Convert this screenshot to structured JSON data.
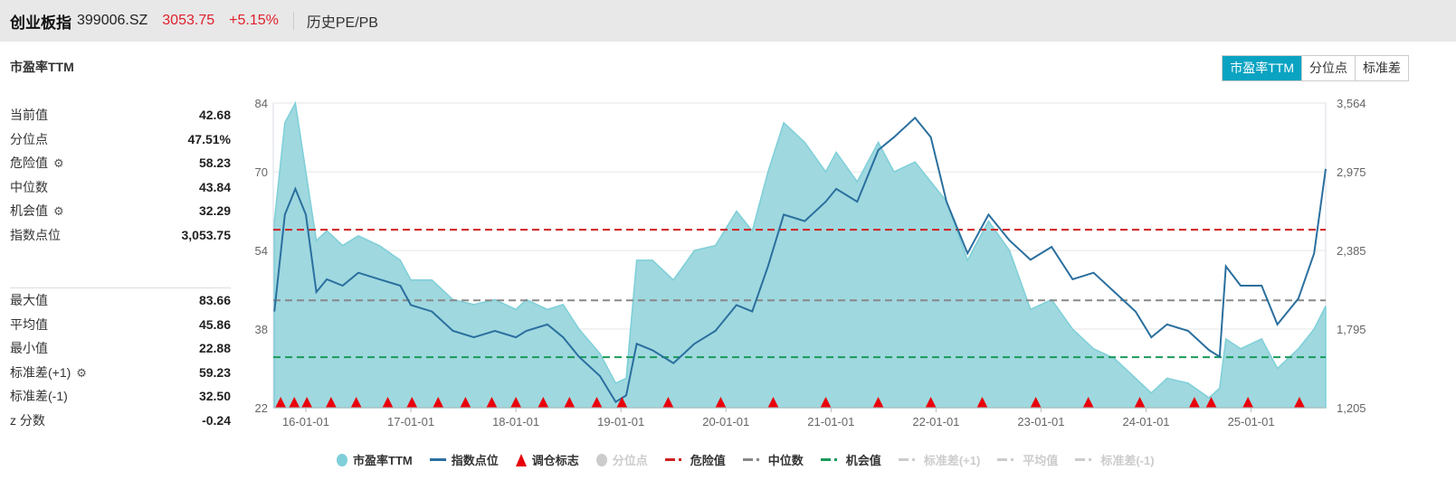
{
  "header": {
    "name": "创业板指",
    "code": "399006.SZ",
    "price": "3053.75",
    "change": "+5.15%",
    "link": "历史PE/PB"
  },
  "section_title": "市盈率TTM",
  "tabs": [
    {
      "label": "市盈率TTM",
      "active": true
    },
    {
      "label": "分位点",
      "active": false
    },
    {
      "label": "标准差",
      "active": false
    }
  ],
  "stats_top": [
    {
      "label": "当前值",
      "value": "42.68",
      "gear": false
    },
    {
      "label": "分位点",
      "value": "47.51%",
      "gear": false
    },
    {
      "label": "危险值",
      "value": "58.23",
      "gear": true
    },
    {
      "label": "中位数",
      "value": "43.84",
      "gear": false
    },
    {
      "label": "机会值",
      "value": "32.29",
      "gear": true
    },
    {
      "label": "指数点位",
      "value": "3,053.75",
      "gear": false
    }
  ],
  "stats_bottom": [
    {
      "label": "最大值",
      "value": "83.66",
      "gear": false
    },
    {
      "label": "平均值",
      "value": "45.86",
      "gear": false
    },
    {
      "label": "最小值",
      "value": "22.88",
      "gear": false
    },
    {
      "label": "标准差(+1)",
      "value": "59.23",
      "gear": true
    },
    {
      "label": "标准差(-1)",
      "value": "32.50",
      "gear": false
    },
    {
      "label": "z 分数",
      "value": "-0.24",
      "gear": false
    }
  ],
  "legend": [
    {
      "label": "市盈率TTM",
      "kind": "dot",
      "color": "#7ecfd8",
      "on": true
    },
    {
      "label": "指数点位",
      "kind": "line",
      "color": "#2a6f9e",
      "on": true
    },
    {
      "label": "调仓标志",
      "kind": "tri",
      "color": "#e8000b",
      "on": true
    },
    {
      "label": "分位点",
      "kind": "dot",
      "color": "#cccccc",
      "on": false
    },
    {
      "label": "危险值",
      "kind": "dash",
      "color": "#d02020",
      "on": true
    },
    {
      "label": "中位数",
      "kind": "dash",
      "color": "#888888",
      "on": true
    },
    {
      "label": "机会值",
      "kind": "dash",
      "color": "#1a9a5a",
      "on": true
    },
    {
      "label": "标准差(+1)",
      "kind": "dash",
      "color": "#cccccc",
      "on": false
    },
    {
      "label": "平均值",
      "kind": "dash",
      "color": "#cccccc",
      "on": false
    },
    {
      "label": "标准差(-1)",
      "kind": "dash",
      "color": "#cccccc",
      "on": false
    }
  ],
  "chart_data": {
    "type": "area",
    "xlim": [
      2015.69,
      2025.71
    ],
    "x_ticks": [
      {
        "v": 2016,
        "label": "16-01-01"
      },
      {
        "v": 2017,
        "label": "17-01-01"
      },
      {
        "v": 2018,
        "label": "18-01-01"
      },
      {
        "v": 2019,
        "label": "19-01-01"
      },
      {
        "v": 2020,
        "label": "20-01-01"
      },
      {
        "v": 2021,
        "label": "21-01-01"
      },
      {
        "v": 2022,
        "label": "22-01-01"
      },
      {
        "v": 2023,
        "label": "23-01-01"
      },
      {
        "v": 2024,
        "label": "24-01-01"
      },
      {
        "v": 2025,
        "label": "25-01-01"
      }
    ],
    "y_left": {
      "lim": [
        22,
        84
      ],
      "ticks": [
        "84",
        "70",
        "54",
        "38",
        "22"
      ],
      "tick_values": [
        84,
        70,
        54,
        38,
        22
      ]
    },
    "y_right": {
      "lim": [
        1205,
        3564
      ],
      "ticks": [
        "3,564",
        "2,975",
        "2,385",
        "1,795",
        "1,205"
      ],
      "tick_values": [
        3564,
        2975,
        2385,
        1795,
        1205
      ]
    },
    "x": [
      2015.7,
      2015.8,
      2015.9,
      2016.0,
      2016.1,
      2016.2,
      2016.35,
      2016.5,
      2016.7,
      2016.9,
      2017.0,
      2017.2,
      2017.4,
      2017.6,
      2017.8,
      2018.0,
      2018.1,
      2018.3,
      2018.45,
      2018.6,
      2018.8,
      2018.95,
      2019.05,
      2019.15,
      2019.3,
      2019.5,
      2019.7,
      2019.9,
      2020.1,
      2020.25,
      2020.4,
      2020.55,
      2020.75,
      2020.95,
      2021.05,
      2021.25,
      2021.45,
      2021.6,
      2021.8,
      2021.95,
      2022.1,
      2022.3,
      2022.5,
      2022.7,
      2022.9,
      2023.1,
      2023.3,
      2023.5,
      2023.7,
      2023.9,
      2024.05,
      2024.2,
      2024.4,
      2024.6,
      2024.7,
      2024.76,
      2024.9,
      2025.1,
      2025.25,
      2025.45,
      2025.6,
      2025.71
    ],
    "series": [
      {
        "name": "市盈率TTM",
        "axis": "left",
        "values": [
          60,
          80,
          84,
          70,
          56,
          58,
          55,
          57,
          55,
          52,
          48,
          48,
          44,
          43,
          44,
          42,
          44,
          42,
          43,
          38,
          33,
          27,
          28,
          52,
          52,
          48,
          54,
          55,
          62,
          58,
          70,
          80,
          76,
          70,
          74,
          68,
          76,
          70,
          72,
          68,
          64,
          52,
          60,
          54,
          42,
          44,
          38,
          34,
          32,
          28,
          25,
          28,
          27,
          24,
          26,
          36,
          34,
          36,
          30,
          34,
          38,
          42.68
        ]
      },
      {
        "name": "指数点位",
        "axis": "right",
        "values": [
          1950,
          2700,
          2900,
          2700,
          2100,
          2200,
          2150,
          2250,
          2200,
          2150,
          2000,
          1950,
          1800,
          1750,
          1800,
          1750,
          1800,
          1850,
          1750,
          1600,
          1450,
          1250,
          1300,
          1700,
          1650,
          1550,
          1700,
          1800,
          2000,
          1950,
          2300,
          2700,
          2650,
          2800,
          2900,
          2800,
          3200,
          3300,
          3450,
          3300,
          2800,
          2400,
          2700,
          2500,
          2350,
          2450,
          2200,
          2250,
          2100,
          1950,
          1750,
          1850,
          1800,
          1650,
          1600,
          2300,
          2150,
          2150,
          1850,
          2050,
          2400,
          3053.75
        ]
      }
    ],
    "hlines": [
      {
        "name": "危险值",
        "value": 58.23,
        "color": "#d02020"
      },
      {
        "name": "中位数",
        "value": 43.84,
        "color": "#888888"
      },
      {
        "name": "机会值",
        "value": 32.29,
        "color": "#1a9a5a"
      }
    ],
    "rebalance_markers": [
      2015.76,
      2015.89,
      2016.01,
      2016.24,
      2016.48,
      2016.78,
      2017.01,
      2017.26,
      2017.52,
      2017.77,
      2018.0,
      2018.26,
      2018.51,
      2018.77,
      2019.01,
      2019.45,
      2019.95,
      2020.45,
      2020.95,
      2021.45,
      2021.95,
      2022.44,
      2022.95,
      2023.45,
      2023.94,
      2024.46,
      2024.62,
      2024.97,
      2025.46
    ]
  }
}
